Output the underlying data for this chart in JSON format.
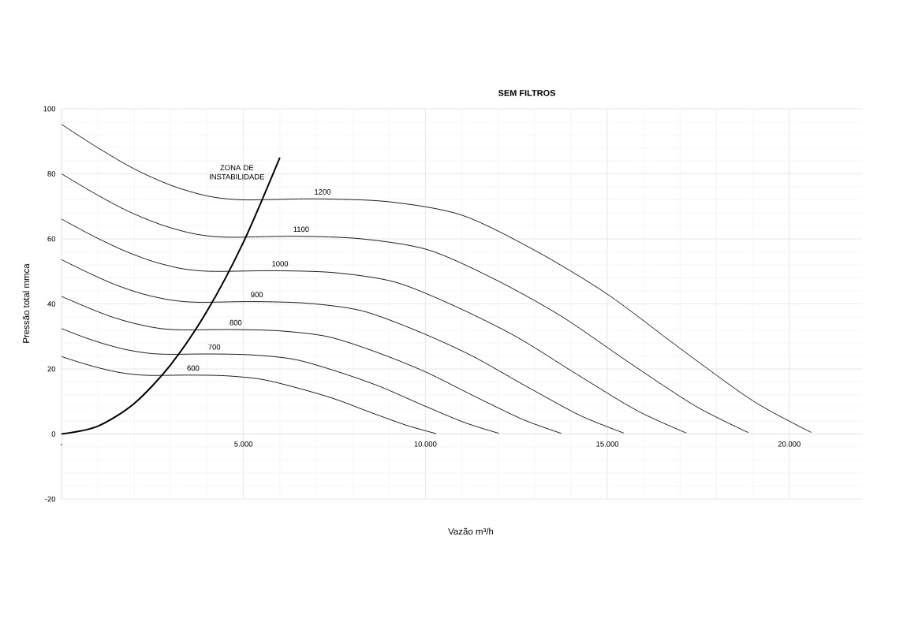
{
  "chart_data": {
    "type": "line",
    "title": "SEM FILTROS",
    "xlabel": "Vazão m³/h",
    "ylabel": "Pressão total mmca",
    "xlim": [
      0,
      22000
    ],
    "ylim": [
      -20,
      100
    ],
    "xticks": [
      {
        "value": 0,
        "label": "-"
      },
      {
        "value": 5000,
        "label": "5.000"
      },
      {
        "value": 10000,
        "label": "10.000"
      },
      {
        "value": 15000,
        "label": "15.000"
      },
      {
        "value": 20000,
        "label": "20.000"
      }
    ],
    "yticks": [
      -20,
      0,
      20,
      40,
      60,
      80,
      100
    ],
    "grid": true,
    "series": [
      {
        "name": "1200",
        "color": "#000000",
        "x": [
          0,
          1000,
          2000,
          3000,
          4000,
          5000,
          7000,
          9000,
          11000,
          13000,
          15000,
          17000,
          19000,
          20600
        ],
        "values": [
          95.2,
          88,
          81.5,
          76.5,
          73.2,
          72,
          72.3,
          71.4,
          67.3,
          56.5,
          43,
          26.3,
          10.2,
          0.5
        ]
      },
      {
        "name": "1100",
        "color": "#000000",
        "x": [
          0,
          920,
          1830,
          2750,
          3670,
          4580,
          6420,
          8250,
          10080,
          11920,
          13750,
          15580,
          17420,
          18880
        ],
        "values": [
          80.0,
          73.9,
          68.5,
          64.3,
          61.5,
          60.5,
          60.8,
          60.0,
          56.6,
          47.5,
          36.1,
          22.1,
          8.6,
          0.4
        ]
      },
      {
        "name": "1000",
        "color": "#000000",
        "x": [
          0,
          830,
          1670,
          2500,
          3330,
          4170,
          5830,
          7500,
          9170,
          10830,
          12500,
          14170,
          15830,
          17170
        ],
        "values": [
          66.1,
          61.1,
          56.6,
          53.1,
          50.8,
          50.0,
          50.2,
          49.6,
          46.7,
          39.2,
          29.9,
          18.3,
          7.1,
          0.3
        ]
      },
      {
        "name": "900",
        "color": "#000000",
        "x": [
          0,
          750,
          1500,
          2250,
          3000,
          3750,
          5250,
          6750,
          8250,
          9750,
          11250,
          12750,
          14250,
          15450
        ],
        "values": [
          53.6,
          49.5,
          45.8,
          43.0,
          41.2,
          40.5,
          40.7,
          40.2,
          37.9,
          31.8,
          24.2,
          14.8,
          5.7,
          0.3
        ]
      },
      {
        "name": "800",
        "color": "#000000",
        "x": [
          0,
          670,
          1330,
          2000,
          2670,
          3330,
          4670,
          6000,
          7330,
          8670,
          10000,
          11330,
          12670,
          13730
        ],
        "values": [
          42.3,
          39.1,
          36.2,
          34.0,
          32.5,
          32.0,
          32.1,
          31.7,
          29.9,
          25.1,
          19.1,
          11.7,
          4.5,
          0.2
        ]
      },
      {
        "name": "700",
        "color": "#000000",
        "x": [
          0,
          580,
          1170,
          1750,
          2330,
          2920,
          4080,
          5250,
          6420,
          7580,
          8750,
          9920,
          11080,
          12020
        ],
        "values": [
          32.4,
          29.9,
          27.7,
          26.0,
          24.9,
          24.5,
          24.6,
          24.3,
          22.9,
          19.2,
          14.6,
          8.9,
          3.5,
          0.2
        ]
      },
      {
        "name": "600",
        "color": "#000000",
        "x": [
          0,
          500,
          1000,
          1500,
          2000,
          2500,
          3500,
          4500,
          5500,
          6500,
          7500,
          8500,
          9500,
          10300
        ],
        "values": [
          23.8,
          22.0,
          20.4,
          19.1,
          18.3,
          18.0,
          18.1,
          17.9,
          16.8,
          14.1,
          10.8,
          6.6,
          2.6,
          0.1
        ]
      },
      {
        "name": "ZONA DE INSTABILIDADE",
        "color": "#000000",
        "x": [
          0,
          1000,
          2000,
          3000,
          4000,
          5000,
          6000
        ],
        "values": [
          0,
          2.4,
          9.4,
          21.3,
          37.8,
          59.0,
          85
        ]
      }
    ]
  }
}
